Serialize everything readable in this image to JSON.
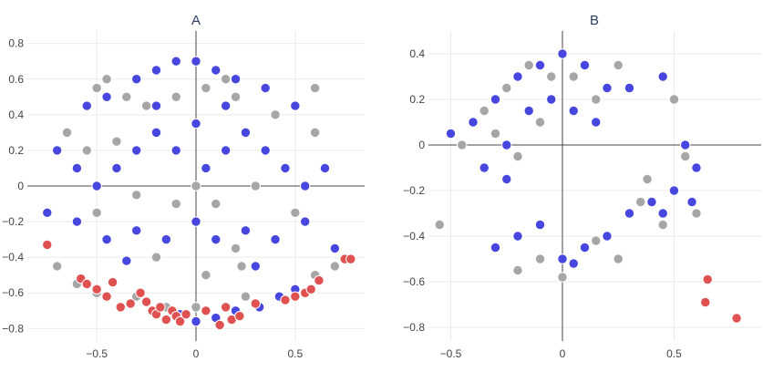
{
  "colors": {
    "blue": "#4747e0",
    "gray": "#a6a6a6",
    "red": "#e05252",
    "marker_outline": "#ffffff",
    "grid": "#ebebeb",
    "zeroline": "#444444"
  },
  "chart_data": [
    {
      "type": "scatter",
      "title": "A",
      "xlabel": "",
      "ylabel": "",
      "xlim": [
        -0.85,
        0.85
      ],
      "ylim": [
        -0.87,
        0.87
      ],
      "xticks": [
        -0.5,
        0,
        0.5
      ],
      "xtick_labels": [
        "−0.5",
        "0",
        "0.5"
      ],
      "yticks": [
        -0.8,
        -0.6,
        -0.4,
        -0.2,
        0,
        0.2,
        0.4,
        0.6,
        0.8
      ],
      "ytick_labels": [
        "−0.8",
        "−0.6",
        "−0.4",
        "−0.2",
        "0",
        "0.2",
        "0.4",
        "0.6",
        "0.8"
      ],
      "grid": true,
      "series": [
        {
          "color": "blue",
          "points": [
            [
              -0.55,
              0.45
            ],
            [
              -0.45,
              0.5
            ],
            [
              -0.3,
              0.6
            ],
            [
              -0.2,
              0.65
            ],
            [
              -0.1,
              0.7
            ],
            [
              0.0,
              0.7
            ],
            [
              0.1,
              0.65
            ],
            [
              0.2,
              0.6
            ],
            [
              0.35,
              0.55
            ],
            [
              0.5,
              0.45
            ],
            [
              -0.7,
              0.2
            ],
            [
              -0.6,
              0.1
            ],
            [
              -0.5,
              0.0
            ],
            [
              -0.4,
              0.1
            ],
            [
              -0.3,
              0.2
            ],
            [
              -0.2,
              0.3
            ],
            [
              -0.1,
              0.2
            ],
            [
              0.05,
              0.1
            ],
            [
              0.15,
              0.2
            ],
            [
              0.25,
              0.3
            ],
            [
              0.35,
              0.2
            ],
            [
              0.45,
              0.1
            ],
            [
              0.55,
              0.0
            ],
            [
              0.65,
              0.1
            ],
            [
              -0.75,
              -0.15
            ],
            [
              -0.6,
              -0.2
            ],
            [
              -0.45,
              -0.3
            ],
            [
              -0.3,
              -0.25
            ],
            [
              -0.15,
              -0.3
            ],
            [
              0.0,
              -0.2
            ],
            [
              0.1,
              -0.3
            ],
            [
              0.25,
              -0.25
            ],
            [
              0.4,
              -0.3
            ],
            [
              0.55,
              -0.2
            ],
            [
              0.7,
              -0.35
            ],
            [
              -0.2,
              0.45
            ],
            [
              0.15,
              0.45
            ],
            [
              0.0,
              0.35
            ],
            [
              0.3,
              -0.45
            ],
            [
              -0.35,
              -0.42
            ],
            [
              0.32,
              -0.68
            ],
            [
              0.42,
              -0.62
            ],
            [
              -0.08,
              -0.72
            ],
            [
              0.0,
              -0.76
            ],
            [
              0.1,
              -0.74
            ],
            [
              0.2,
              -0.7
            ],
            [
              0.5,
              -0.58
            ]
          ]
        },
        {
          "color": "gray",
          "points": [
            [
              -0.5,
              0.55
            ],
            [
              -0.35,
              0.5
            ],
            [
              -0.25,
              0.45
            ],
            [
              -0.1,
              0.5
            ],
            [
              0.05,
              0.55
            ],
            [
              0.2,
              0.5
            ],
            [
              0.4,
              0.4
            ],
            [
              0.6,
              0.3
            ],
            [
              -0.65,
              0.3
            ],
            [
              -0.55,
              0.2
            ],
            [
              -0.4,
              0.25
            ],
            [
              0.0,
              0.0
            ],
            [
              0.1,
              -0.1
            ],
            [
              -0.1,
              -0.1
            ],
            [
              0.3,
              0.0
            ],
            [
              -0.3,
              -0.05
            ],
            [
              0.5,
              -0.15
            ],
            [
              -0.5,
              -0.15
            ],
            [
              0.2,
              -0.35
            ],
            [
              -0.2,
              -0.4
            ],
            [
              0.05,
              -0.5
            ],
            [
              -0.7,
              -0.45
            ],
            [
              -0.6,
              -0.55
            ],
            [
              -0.5,
              -0.6
            ],
            [
              0.6,
              -0.5
            ],
            [
              0.7,
              -0.45
            ],
            [
              0.23,
              -0.45
            ],
            [
              0.0,
              -0.68
            ],
            [
              0.25,
              -0.62
            ],
            [
              -0.3,
              -0.62
            ],
            [
              -0.15,
              -0.68
            ],
            [
              0.15,
              0.6
            ],
            [
              -0.45,
              0.6
            ],
            [
              0.6,
              0.55
            ]
          ]
        },
        {
          "color": "red",
          "points": [
            [
              -0.75,
              -0.33
            ],
            [
              -0.58,
              -0.52
            ],
            [
              -0.55,
              -0.55
            ],
            [
              -0.5,
              -0.58
            ],
            [
              -0.45,
              -0.62
            ],
            [
              -0.42,
              -0.54
            ],
            [
              -0.38,
              -0.68
            ],
            [
              -0.33,
              -0.66
            ],
            [
              -0.28,
              -0.6
            ],
            [
              -0.25,
              -0.65
            ],
            [
              -0.22,
              -0.7
            ],
            [
              -0.2,
              -0.72
            ],
            [
              -0.18,
              -0.68
            ],
            [
              -0.15,
              -0.75
            ],
            [
              -0.12,
              -0.7
            ],
            [
              -0.1,
              -0.73
            ],
            [
              -0.08,
              -0.76
            ],
            [
              -0.05,
              -0.72
            ],
            [
              0.05,
              -0.7
            ],
            [
              0.12,
              -0.78
            ],
            [
              0.15,
              -0.68
            ],
            [
              0.18,
              -0.75
            ],
            [
              0.22,
              -0.73
            ],
            [
              0.3,
              -0.66
            ],
            [
              0.45,
              -0.64
            ],
            [
              0.5,
              -0.62
            ],
            [
              0.55,
              -0.6
            ],
            [
              0.58,
              -0.58
            ],
            [
              0.62,
              -0.53
            ],
            [
              0.75,
              -0.41
            ],
            [
              0.78,
              -0.41
            ]
          ]
        }
      ]
    },
    {
      "type": "scatter",
      "title": "B",
      "xlabel": "",
      "ylabel": "",
      "xlim": [
        -0.6,
        0.89
      ],
      "ylim": [
        -0.86,
        0.5
      ],
      "xticks": [
        -0.5,
        0,
        0.5
      ],
      "xtick_labels": [
        "−0.5",
        "0",
        "0.5"
      ],
      "yticks": [
        -0.8,
        -0.6,
        -0.4,
        -0.2,
        0,
        0.2,
        0.4
      ],
      "ytick_labels": [
        "−0.8",
        "−0.6",
        "−0.4",
        "−0.2",
        "0",
        "0.2",
        "0.4"
      ],
      "grid": true,
      "series": [
        {
          "color": "blue",
          "points": [
            [
              -0.5,
              0.05
            ],
            [
              -0.4,
              0.1
            ],
            [
              -0.3,
              0.2
            ],
            [
              -0.2,
              0.3
            ],
            [
              -0.1,
              0.35
            ],
            [
              0.0,
              0.4
            ],
            [
              0.1,
              0.35
            ],
            [
              0.2,
              0.25
            ],
            [
              -0.35,
              -0.1
            ],
            [
              -0.25,
              0.0
            ],
            [
              -0.15,
              0.15
            ],
            [
              -0.05,
              0.2
            ],
            [
              0.05,
              0.15
            ],
            [
              0.15,
              0.1
            ],
            [
              0.45,
              0.3
            ],
            [
              0.3,
              0.25
            ],
            [
              -0.3,
              -0.45
            ],
            [
              -0.2,
              -0.4
            ],
            [
              -0.1,
              -0.35
            ],
            [
              0.0,
              -0.5
            ],
            [
              0.1,
              -0.45
            ],
            [
              0.2,
              -0.4
            ],
            [
              0.3,
              -0.3
            ],
            [
              0.4,
              -0.25
            ],
            [
              0.5,
              -0.2
            ],
            [
              0.55,
              0.0
            ],
            [
              0.6,
              -0.1
            ],
            [
              -0.25,
              -0.15
            ],
            [
              0.45,
              -0.3
            ],
            [
              0.58,
              -0.25
            ],
            [
              0.05,
              -0.52
            ]
          ]
        },
        {
          "color": "gray",
          "points": [
            [
              -0.45,
              0.0
            ],
            [
              -0.35,
              0.15
            ],
            [
              -0.25,
              0.25
            ],
            [
              -0.15,
              0.35
            ],
            [
              -0.05,
              0.3
            ],
            [
              0.05,
              0.3
            ],
            [
              0.15,
              0.2
            ],
            [
              0.25,
              0.35
            ],
            [
              -0.3,
              0.05
            ],
            [
              -0.2,
              -0.05
            ],
            [
              -0.1,
              0.1
            ],
            [
              0.35,
              -0.25
            ],
            [
              0.45,
              -0.35
            ],
            [
              0.25,
              -0.5
            ],
            [
              0.0,
              -0.58
            ],
            [
              -0.1,
              -0.5
            ],
            [
              -0.2,
              -0.55
            ],
            [
              0.5,
              0.2
            ],
            [
              0.55,
              -0.05
            ],
            [
              -0.55,
              -0.35
            ],
            [
              0.6,
              -0.3
            ],
            [
              0.38,
              -0.15
            ],
            [
              0.15,
              -0.42
            ]
          ]
        },
        {
          "color": "red",
          "points": [
            [
              0.65,
              -0.59
            ],
            [
              0.64,
              -0.69
            ],
            [
              0.78,
              -0.76
            ]
          ]
        }
      ]
    }
  ]
}
